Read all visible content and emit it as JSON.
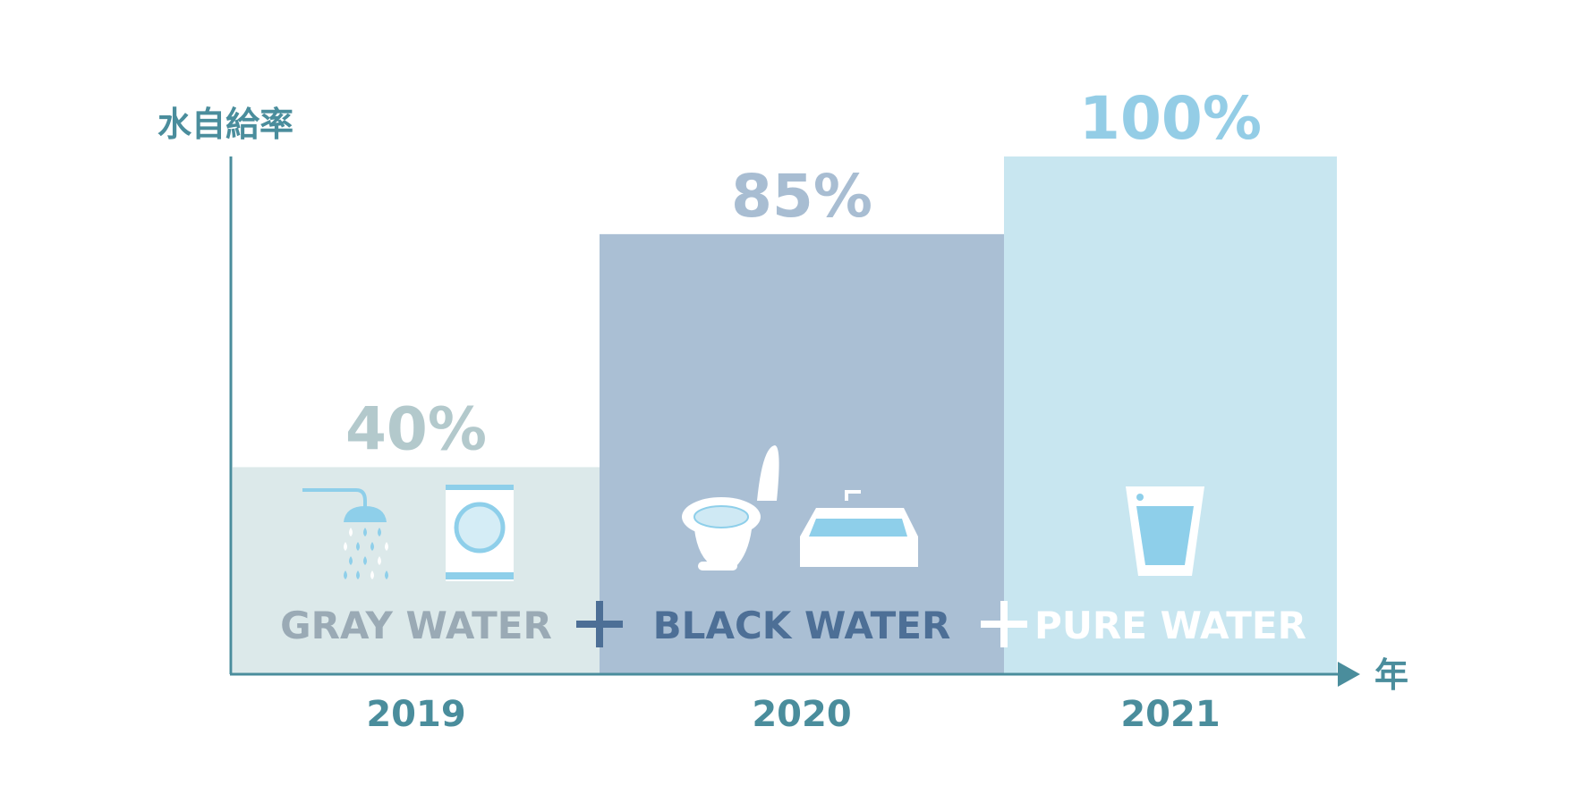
{
  "chart_data": {
    "type": "bar",
    "ylabel": "水自給率",
    "xlabel": "年",
    "ylim": [
      0,
      100
    ],
    "grid": false,
    "categories": [
      "2019",
      "2020",
      "2021"
    ],
    "values": [
      40,
      85,
      100
    ],
    "data_labels": [
      "40%",
      "85%",
      "100%"
    ],
    "segment_labels": [
      "GRAY WATER",
      "BLACK WATER",
      "PURE WATER"
    ],
    "separators": [
      "+",
      "+"
    ],
    "icons": [
      [
        "shower-icon",
        "washing-machine-icon"
      ],
      [
        "toilet-icon",
        "bathtub-icon"
      ],
      [
        "water-glass-icon"
      ]
    ],
    "colors": {
      "bars": [
        "#dce9ea",
        "#aabfd4",
        "#c8e6f0"
      ],
      "value_labels": [
        "#b3c9cc",
        "#a8bdd2",
        "#94cde6"
      ],
      "segment_labels": [
        "#9aaab5",
        "#4d6f96",
        "#ffffff"
      ],
      "separators": [
        "#4d6f96",
        "#ffffff"
      ],
      "axis": "#4a8d9c",
      "icon_accent": "#8ecfea"
    }
  }
}
